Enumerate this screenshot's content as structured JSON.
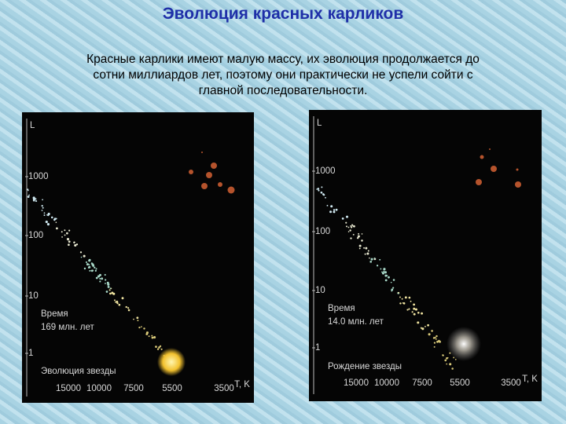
{
  "header": {
    "title": "Эволюция красных карликов"
  },
  "intro": {
    "lines": [
      "Красные карлики имеют малую массу, их эволюция продолжается до",
      "сотни миллиардов лет, поэтому они практически  не успели сойти с",
      "главной последовательности."
    ]
  },
  "panels": [
    {
      "y_label": "L",
      "y_ticks": [
        "1000",
        "100",
        "10",
        "1"
      ],
      "x_ticks": [
        "15000",
        "10000",
        "7500",
        "5500",
        "3500"
      ],
      "x_label": "T, K",
      "time_label": "Время",
      "time_value": "169 млн. лет",
      "caption": "Эволюция звезды"
    },
    {
      "y_label": "L",
      "y_ticks": [
        "1000",
        "100",
        "10",
        "1"
      ],
      "x_ticks": [
        "15000",
        "10000",
        "7500",
        "5500",
        "3500"
      ],
      "x_label": "T, K",
      "time_label": "Время",
      "time_value": "14.0 млн. лет",
      "caption": "Рождение звезды"
    }
  ]
}
